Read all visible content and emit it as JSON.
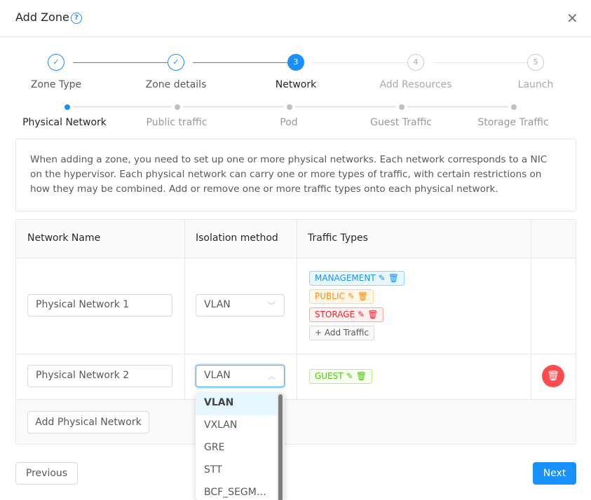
{
  "modal": {
    "title": "Add Zone",
    "help_icon": "question-circle-icon",
    "close_icon": "close-icon"
  },
  "steps": [
    {
      "label": "Zone Type",
      "status": "finish"
    },
    {
      "label": "Zone details",
      "status": "finish"
    },
    {
      "label": "Network",
      "number": "3",
      "status": "process"
    },
    {
      "label": "Add Resources",
      "number": "4",
      "status": "wait"
    },
    {
      "label": "Launch",
      "number": "5",
      "status": "wait"
    }
  ],
  "substeps": [
    {
      "label": "Physical Network",
      "status": "process"
    },
    {
      "label": "Public traffic"
    },
    {
      "label": "Pod"
    },
    {
      "label": "Guest Traffic"
    },
    {
      "label": "Storage Traffic"
    }
  ],
  "description": "When adding a zone, you need to set up one or more physical networks. Each network corresponds to a NIC on the hypervisor. Each physical network can carry one or more types of traffic, with certain restrictions on how they may be combined. Add or remove one or more traffic types onto each physical network.",
  "table": {
    "headers": [
      "Network Name",
      "Isolation method",
      "Traffic Types"
    ],
    "rows": [
      {
        "name": "Physical Network 1",
        "isolation": "VLAN",
        "traffic": [
          "MANAGEMENT",
          "PUBLIC",
          "STORAGE"
        ],
        "add_traffic": "+ Add Traffic"
      },
      {
        "name": "Physical Network 2",
        "isolation": "VLAN",
        "traffic": [
          "GUEST"
        ]
      }
    ],
    "add_network": "Add Physical Network"
  },
  "dropdown": {
    "options": [
      "VLAN",
      "VXLAN",
      "GRE",
      "STT",
      "BCF_SEGM…"
    ],
    "selected": "VLAN"
  },
  "footer": {
    "previous": "Previous",
    "next": "Next"
  },
  "colors": {
    "primary": "#1890ff",
    "management": "#1890ff",
    "public": "#fa8c16",
    "storage": "#f5222d",
    "guest": "#52c41a",
    "danger": "#ff4d4f"
  }
}
